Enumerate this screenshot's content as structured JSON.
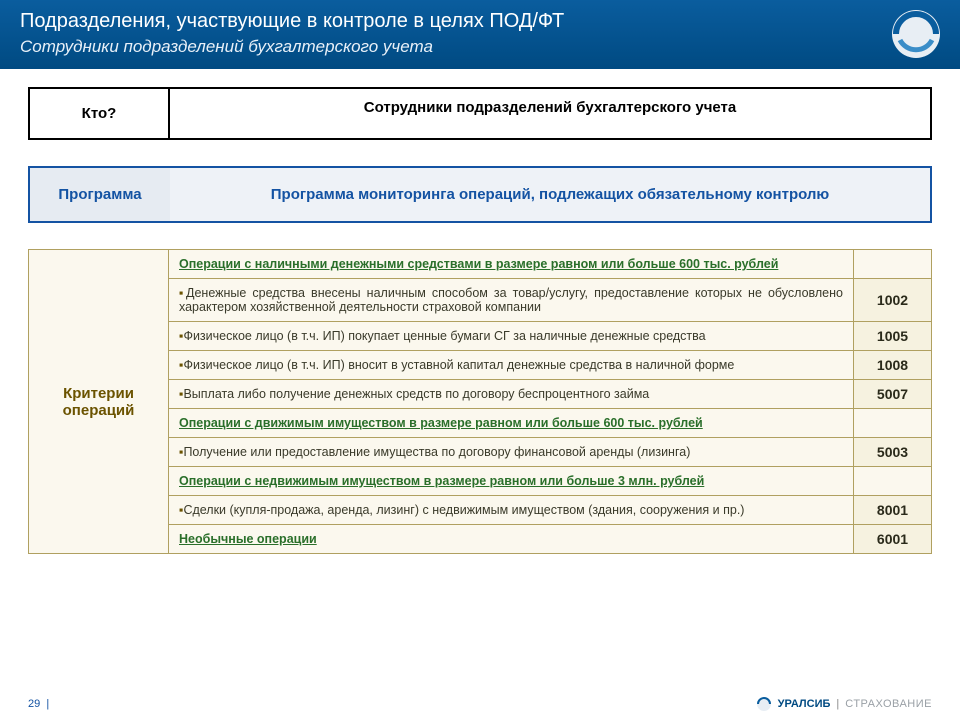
{
  "header": {
    "title": "Подразделения, участвующие в контроле в целях ПОД/ФТ",
    "subtitle": "Сотрудники подразделений бухгалтерского учета"
  },
  "who": {
    "label": "Кто?",
    "value": "Сотрудники подразделений бухгалтерского учета"
  },
  "program": {
    "label": "Программа",
    "value": "Программа мониторинга операций, подлежащих обязательному контролю"
  },
  "criteria": {
    "label": "Критерии операций",
    "rows": [
      {
        "type": "header",
        "desc": "Операции с наличными денежными средствами в  размере равном или больше 600 тыс. рублей",
        "code": ""
      },
      {
        "type": "item",
        "desc": "Денежные средства внесены наличным способом за товар/услугу, предоставление которых не обусловлено характером хозяйственной деятельности страховой компании",
        "code": "1002"
      },
      {
        "type": "item",
        "desc": "Физическое лицо  (в т.ч. ИП) покупает ценные бумаги СГ за наличные денежные средства",
        "code": "1005"
      },
      {
        "type": "item",
        "desc": "Физическое лицо (в т.ч. ИП)  вносит в уставной капитал денежные средства в наличной форме",
        "code": "1008"
      },
      {
        "type": "item",
        "desc": "Выплата либо получение денежных средств по договору беспроцентного займа",
        "code": "5007"
      },
      {
        "type": "header",
        "desc": "Операции с движимым имуществом в размере равном или больше 600 тыс. рублей",
        "code": ""
      },
      {
        "type": "item",
        "desc": "Получение или предоставление имущества по договору финансовой аренды (лизинга)",
        "code": "5003"
      },
      {
        "type": "header",
        "desc": "Операции с недвижимым имуществом в размере равном или больше 3 млн. рублей",
        "code": ""
      },
      {
        "type": "item",
        "desc": "Сделки (купля-продажа, аренда, лизинг) с недвижимым имуществом (здания, сооружения и пр.)",
        "code": "8001"
      },
      {
        "type": "header",
        "desc": "Необычные операции",
        "code": "6001"
      }
    ]
  },
  "footer": {
    "page": "29",
    "brand": "УРАЛСИБ",
    "brand_suffix": "СТРАХОВАНИЕ"
  },
  "colors": {
    "header_bg_top": "#0a5d9e",
    "header_bg_bottom": "#004a82",
    "blue_border": "#1453a3",
    "blue_bg": "#eef2f7",
    "olive_border": "#b0a060",
    "olive_bg": "#fbf8ee",
    "olive_text": "#6b5300",
    "green_text": "#2a6f2a"
  }
}
